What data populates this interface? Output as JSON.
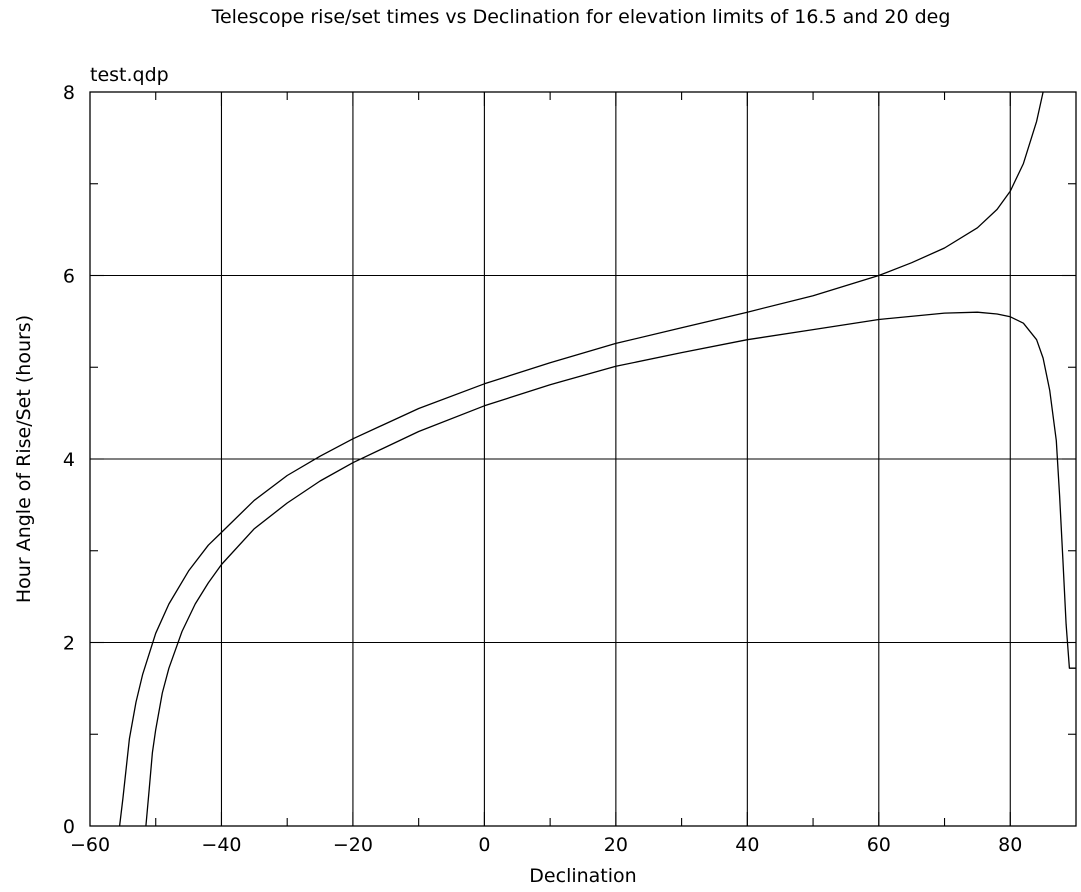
{
  "chart_data": {
    "type": "line",
    "title": "Telescope rise/set times vs Declination for elevation limits of 16.5 and 20 deg",
    "subtitle": "test.qdp",
    "xlabel": "Declination",
    "ylabel": "Hour Angle of Rise/Set (hours)",
    "xlim": [
      -60,
      90
    ],
    "ylim": [
      0,
      8
    ],
    "x_ticks": [
      -60,
      -40,
      -20,
      0,
      20,
      40,
      60,
      80
    ],
    "x_tick_labels": [
      "−60",
      "−40",
      "−20",
      "0",
      "20",
      "40",
      "60",
      "80"
    ],
    "y_ticks": [
      0,
      2,
      4,
      6,
      8
    ],
    "y_tick_labels": [
      "0",
      "2",
      "4",
      "6",
      "8"
    ],
    "grid": true,
    "series": [
      {
        "x": [
          -55.5,
          -55,
          -54,
          -53,
          -52,
          -50,
          -48,
          -45,
          -42,
          -40,
          -35,
          -30,
          -25,
          -20,
          -10,
          0,
          10,
          20,
          30,
          40,
          50,
          60,
          65,
          70,
          75,
          78,
          80,
          82,
          84,
          85
        ],
        "y": [
          0,
          0.3,
          0.95,
          1.35,
          1.65,
          2.1,
          2.42,
          2.78,
          3.06,
          3.2,
          3.55,
          3.82,
          4.03,
          4.22,
          4.55,
          4.82,
          5.05,
          5.26,
          5.43,
          5.6,
          5.78,
          6.0,
          6.14,
          6.3,
          6.52,
          6.72,
          6.92,
          7.22,
          7.68,
          8.0
        ]
      },
      {
        "x": [
          -51.5,
          -51,
          -50.5,
          -50,
          -49,
          -48,
          -46,
          -44,
          -42,
          -40,
          -35,
          -30,
          -25,
          -20,
          -10,
          0,
          10,
          20,
          30,
          40,
          50,
          60,
          70,
          75,
          78,
          80,
          82,
          84,
          85,
          86,
          87,
          87.5,
          88,
          88.5,
          89,
          90
        ],
        "y": [
          0,
          0.4,
          0.8,
          1.05,
          1.45,
          1.72,
          2.12,
          2.42,
          2.65,
          2.85,
          3.24,
          3.52,
          3.76,
          3.96,
          4.3,
          4.58,
          4.81,
          5.01,
          5.16,
          5.3,
          5.41,
          5.52,
          5.59,
          5.6,
          5.58,
          5.55,
          5.48,
          5.3,
          5.1,
          4.75,
          4.2,
          3.6,
          2.9,
          2.2,
          1.72,
          1.72
        ]
      }
    ]
  }
}
